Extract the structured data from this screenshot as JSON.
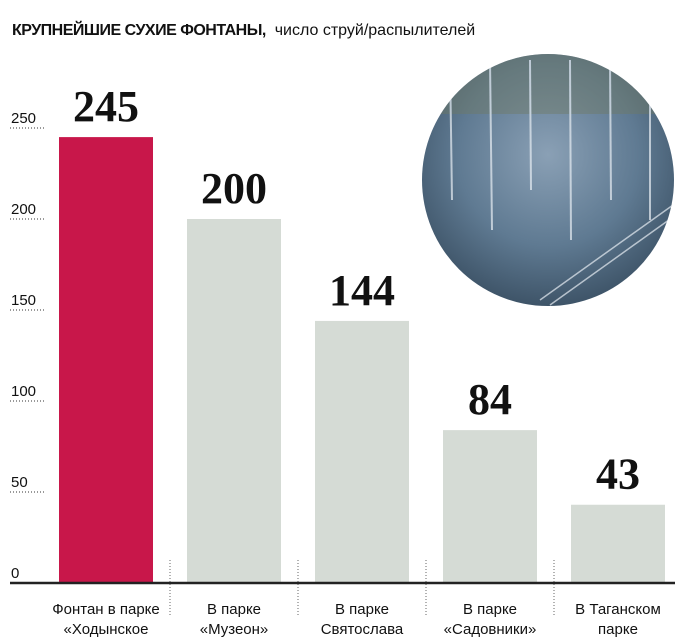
{
  "chart_data": {
    "type": "bar",
    "title": "КРУПНЕЙШИЕ СУХИЕ ФОНТАНЫ,",
    "subtitle": "число струй/распылителей",
    "categories": [
      "Фонтан в парке\n«Ходынское",
      "В парке\n«Музеон»",
      "В парке\nСвятослава",
      "В парке\n«Садовники»",
      "В Таганском\nпарке"
    ],
    "values": [
      245,
      200,
      144,
      84,
      43
    ],
    "colors": [
      "#c8174a",
      "#d5dbd5",
      "#d5dbd5",
      "#d5dbd5",
      "#d5dbd5"
    ],
    "ylim": [
      0,
      250
    ],
    "yticks": [
      0,
      50,
      100,
      150,
      200,
      250
    ],
    "grid": true
  }
}
